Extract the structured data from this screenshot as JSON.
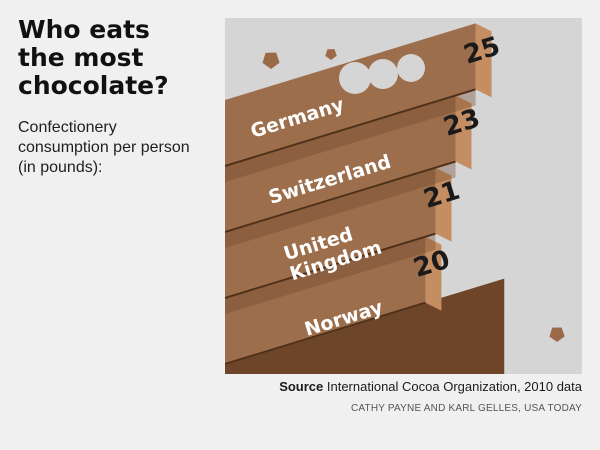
{
  "header": {
    "title": "Who eats\nthe most\nchocolate?",
    "subtitle": "Confectionery\nconsumption per person\n(in pounds):"
  },
  "chart_data": {
    "type": "bar",
    "title": "Who eats the most chocolate?",
    "subtitle": "Confectionery consumption per person (in pounds):",
    "categories": [
      "Germany",
      "Switzerland",
      "United Kingdom",
      "Norway"
    ],
    "category_lines": [
      [
        "Germany"
      ],
      [
        "Switzerland"
      ],
      [
        "United",
        "Kingdom"
      ],
      [
        "Norway"
      ]
    ],
    "values": [
      25,
      23,
      21,
      20
    ],
    "value_labels": [
      "25",
      "23",
      "21",
      "20"
    ]
  },
  "footer": {
    "source_label": "Source",
    "source_text": " International Cocoa Organization, 2010 data",
    "credit": "CATHY PAYNE AND KARL GELLES, USA TODAY"
  },
  "colors": {
    "background": "#f0f0f0",
    "panel": "#d5d5d5",
    "chocolate_top": "#9c6e4c",
    "chocolate_front": "#6e4528",
    "chocolate_side": "#c58e62",
    "text_on_bar": "#ffffff",
    "value_text": "#1a1a1a"
  }
}
